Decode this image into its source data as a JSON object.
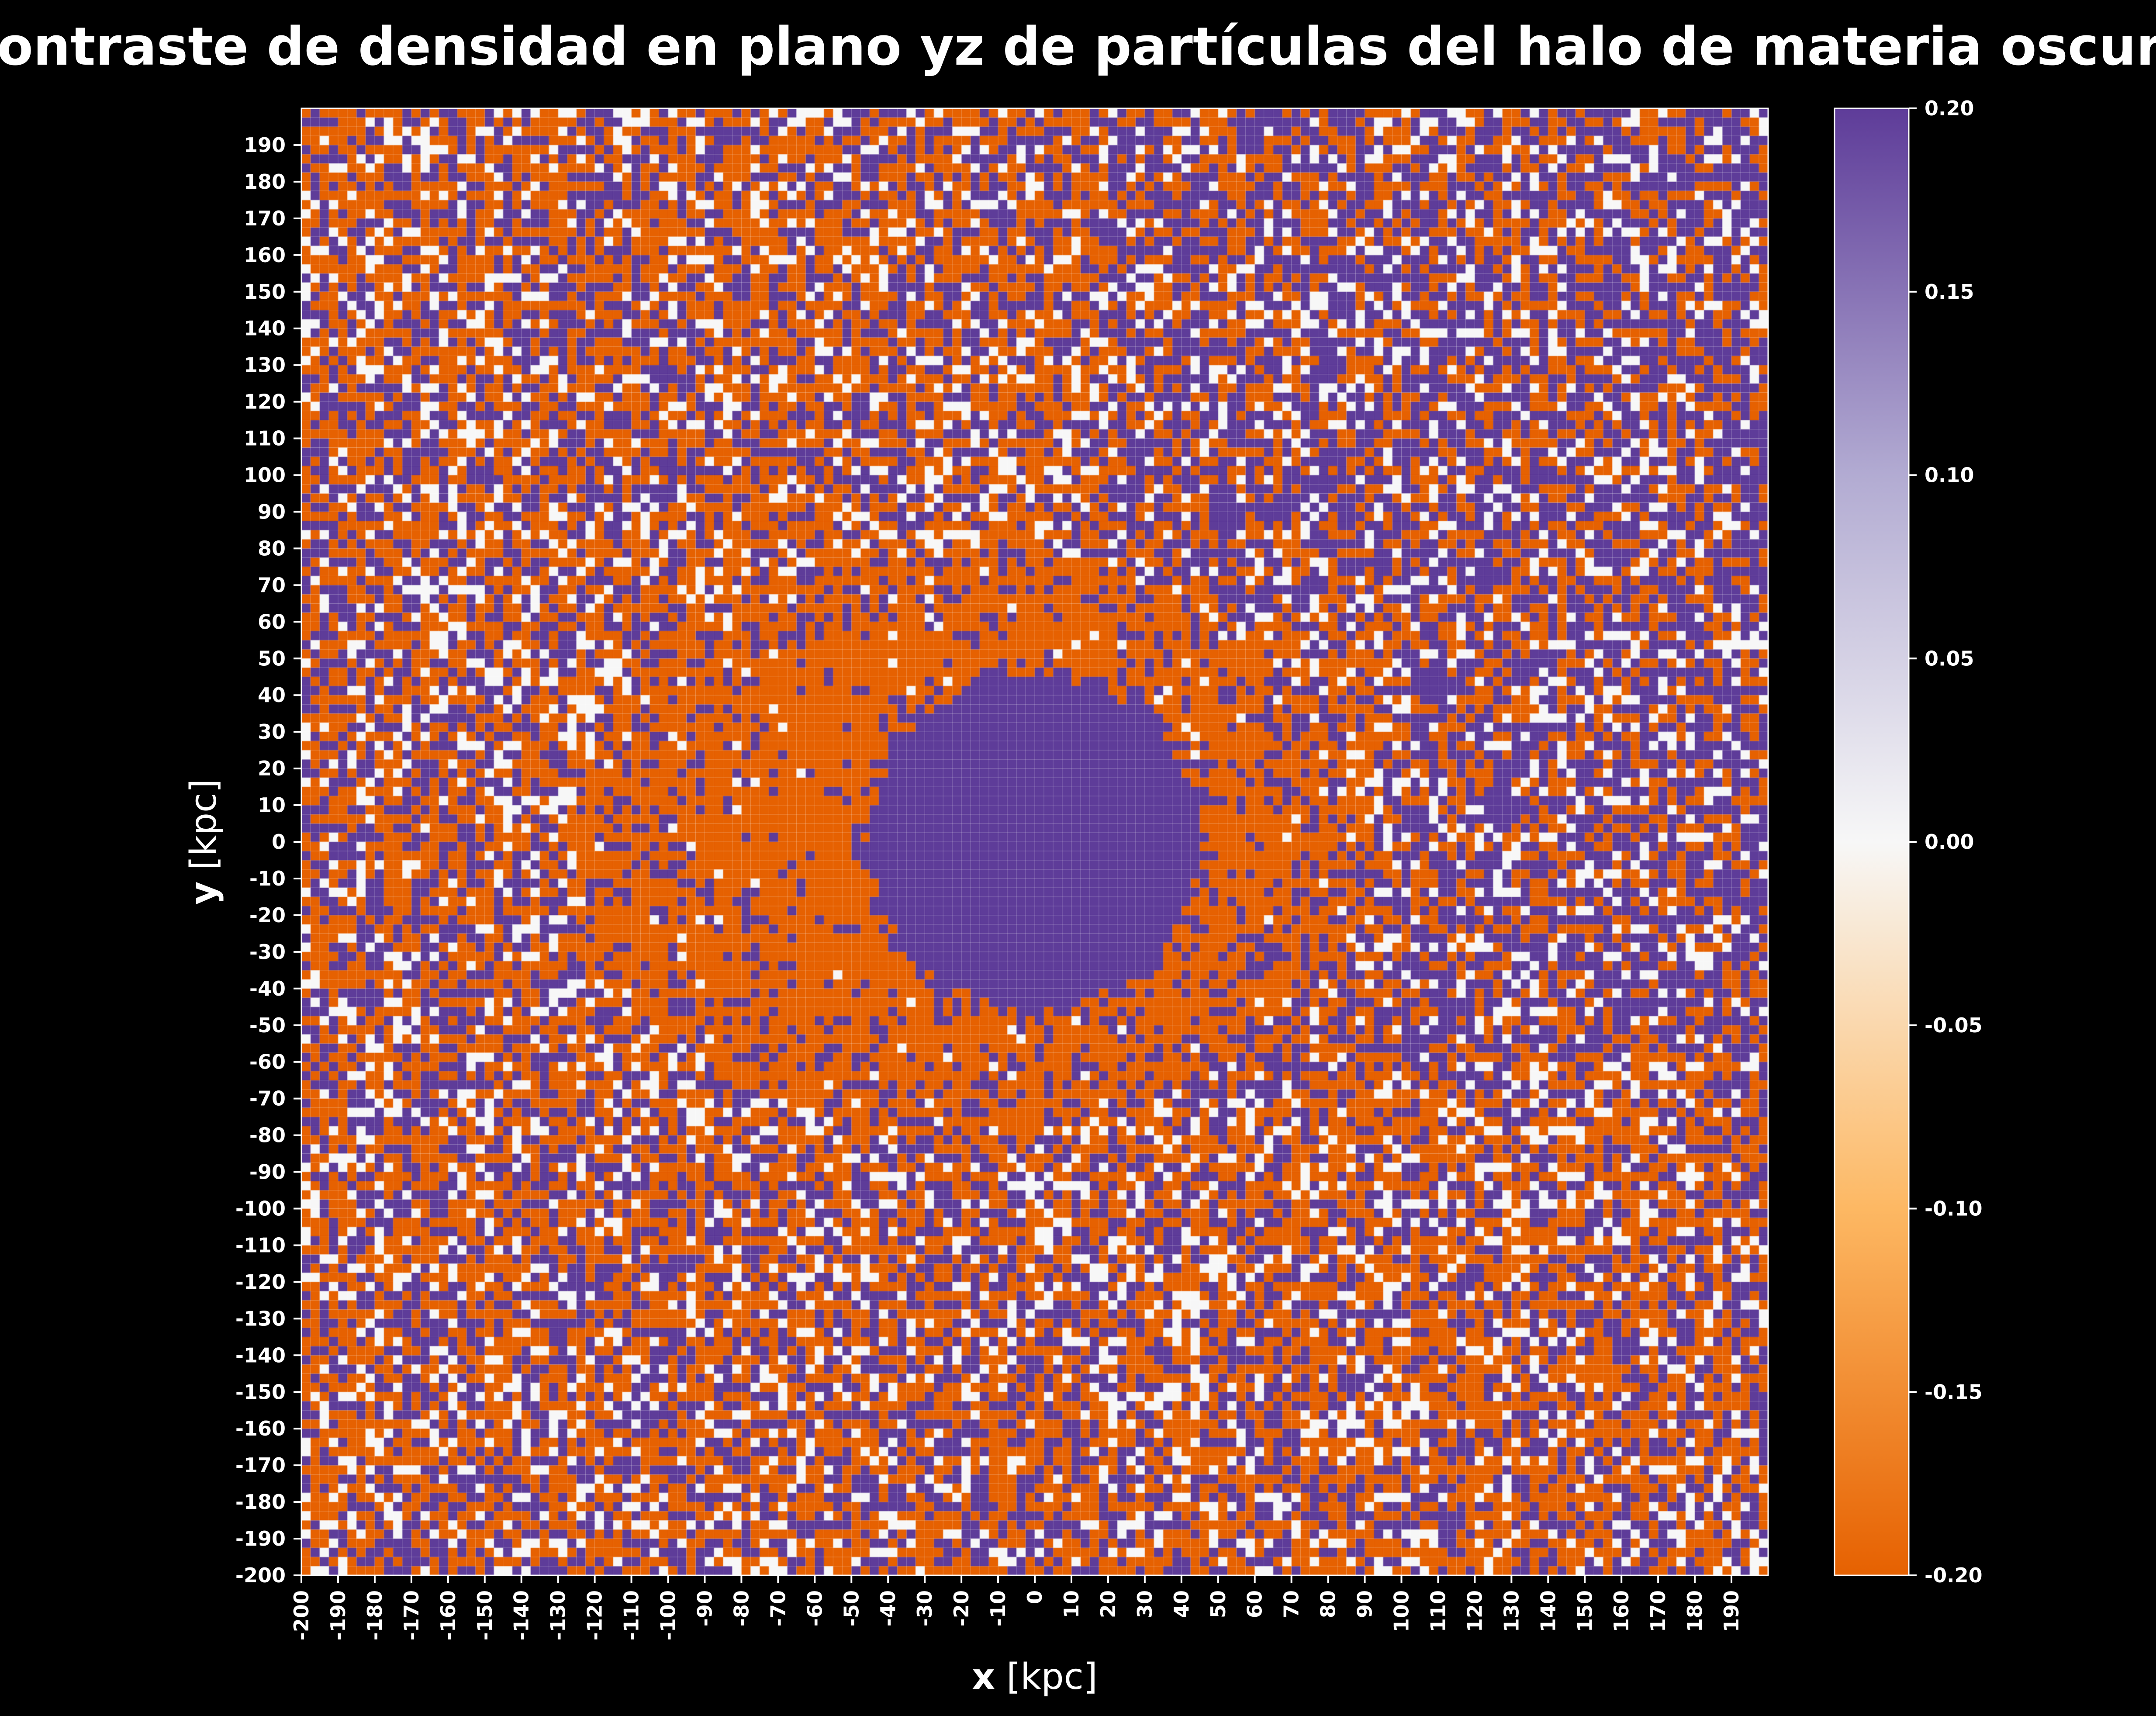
{
  "chart_data": {
    "type": "heatmap",
    "title": "Contraste de densidad en plano yz de partículas del halo de materia oscura",
    "xlabel_symbol": "x",
    "xlabel_unit": "[kpc]",
    "ylabel_symbol": "y",
    "ylabel_unit": "[kpc]",
    "xlim": [
      -200,
      200
    ],
    "ylim": [
      -200,
      200
    ],
    "bin_size_kpc": 2.5,
    "x_ticks": [
      -200,
      -190,
      -180,
      -170,
      -160,
      -150,
      -140,
      -130,
      -120,
      -110,
      -100,
      -90,
      -80,
      -70,
      -60,
      -50,
      -40,
      -30,
      -20,
      -10,
      0,
      10,
      20,
      30,
      40,
      50,
      60,
      70,
      80,
      90,
      100,
      110,
      120,
      130,
      140,
      150,
      160,
      170,
      180,
      190
    ],
    "y_ticks": [
      -200,
      -190,
      -180,
      -170,
      -160,
      -150,
      -140,
      -130,
      -120,
      -110,
      -100,
      -90,
      -80,
      -70,
      -60,
      -50,
      -40,
      -30,
      -20,
      -10,
      0,
      10,
      20,
      30,
      40,
      50,
      60,
      70,
      80,
      90,
      100,
      110,
      120,
      130,
      140,
      150,
      160,
      170,
      180,
      190
    ],
    "colorbar": {
      "vmin": -0.2,
      "vmax": 0.2,
      "ticks": [
        "-0.20",
        "-0.15",
        "-0.10",
        "-0.05",
        "0.00",
        "0.05",
        "0.10",
        "0.15",
        "0.20"
      ],
      "colormap": "PuOr",
      "colors": [
        "#e66101",
        "#fdb863",
        "#f7f7f7",
        "#b2abd2",
        "#5e3c99"
      ]
    },
    "features": {
      "core": {
        "x_center": 0,
        "y_center": 0,
        "radius": 47,
        "value": 0.2
      },
      "underdense_shell": {
        "x_center": -20,
        "y_center": 0,
        "x_radius": 105,
        "y_radius": 80,
        "value": -0.2
      },
      "outer_region": "mixed pixels of -0.2, 0.2 and ~0 values"
    },
    "grid": true,
    "legend": "none"
  }
}
